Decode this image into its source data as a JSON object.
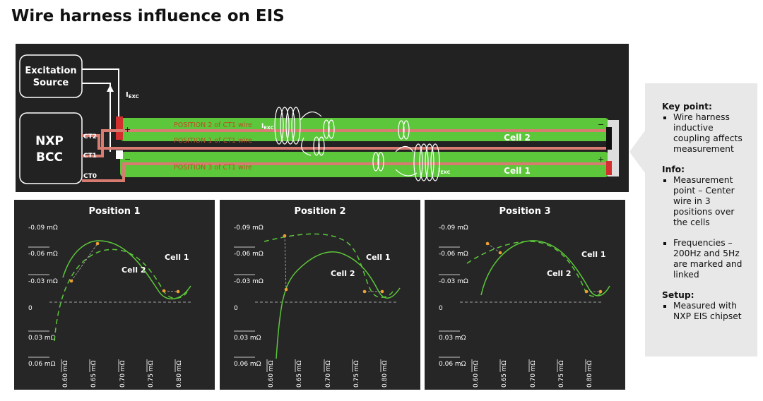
{
  "title": "Wire harness influence on EIS",
  "diagram": {
    "excitation_source": [
      "Excitation",
      "Source"
    ],
    "nxp_bcc": [
      "NXP",
      "BCC"
    ],
    "current": {
      "main": "I",
      "sub": "EXC"
    },
    "ct2": "CT2",
    "ct1": "CT1",
    "ct0": "CT0",
    "position2": "POSITION 2 of CT1 wire",
    "position1": "POSITION 1 of CT1 wire",
    "position3": "POSITION 3 of CT1 wire",
    "cell2": "Cell 2",
    "cell1": "Cell 1",
    "plus": "+",
    "minus": "−"
  },
  "panels": [
    {
      "title": "Position 1",
      "cell1": "Cell 1",
      "cell2": "Cell 2",
      "yticks": [
        "-0.09 mΩ",
        "-0.06 mΩ",
        "-0.03 mΩ",
        "0",
        "0.03 mΩ",
        "0.06 mΩ"
      ],
      "xticks": [
        "0.60 mΩ",
        "0.65 mΩ",
        "0.70 mΩ",
        "0.75 mΩ",
        "0.80 mΩ"
      ]
    },
    {
      "title": "Position 2",
      "cell1": "Cell 1",
      "cell2": "Cell 2",
      "yticks": [
        "-0.09 mΩ",
        "-0.06 mΩ",
        "-0.03 mΩ",
        "0",
        "0.03 mΩ",
        "0.06 mΩ"
      ],
      "xticks": [
        "0.60 mΩ",
        "0.65 mΩ",
        "0.70 mΩ",
        "0.75 mΩ",
        "0.80 mΩ"
      ]
    },
    {
      "title": "Position 3",
      "cell1": "Cell 1",
      "cell2": "Cell 2",
      "yticks": [
        "-0.09 mΩ",
        "-0.06 mΩ",
        "-0.03 mΩ",
        "0",
        "0.03 mΩ",
        "0.06 mΩ"
      ],
      "xticks": [
        "0.60 mΩ",
        "0.65 mΩ",
        "0.70 mΩ",
        "0.75 mΩ",
        "0.80 mΩ"
      ]
    }
  ],
  "sidebar": [
    {
      "heading": "Key point:",
      "items": [
        "Wire harness inductive coupling affects measurement"
      ]
    },
    {
      "heading": "Info:",
      "items": [
        "Measurement point – Center wire in 3 positions over the cells",
        "Frequencies – 200Hz and 5Hz are marked and linked"
      ]
    },
    {
      "heading": "Setup:",
      "items": [
        "Measured with NXP EIS chipset"
      ]
    }
  ]
}
